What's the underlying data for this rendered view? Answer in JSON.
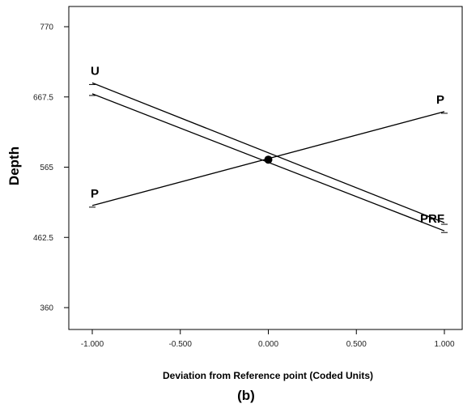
{
  "chart_data": {
    "type": "line",
    "title": "",
    "xlabel": "Deviation from Reference point (Coded Units)",
    "ylabel": "Depth",
    "caption": "(b)",
    "xlim": [
      -1.1,
      1.1
    ],
    "ylim": [
      325,
      810
    ],
    "x_ticks": [
      "-1.000",
      "-0.500",
      "0.000",
      "0.500",
      "1.000"
    ],
    "x_tick_values": [
      -1,
      -0.5,
      0,
      0.5,
      1
    ],
    "y_ticks": [
      "770",
      "667.5",
      "565",
      "462.5",
      "360"
    ],
    "y_tick_values": [
      770,
      667.5,
      565,
      462.5,
      360
    ],
    "reference_point": {
      "x": 0,
      "y": 576
    },
    "series": [
      {
        "name": "U",
        "x": [
          -1,
          1
        ],
        "y": [
          688,
          484
        ],
        "left_label": "U",
        "right_label": ""
      },
      {
        "name": "P",
        "x": [
          -1,
          1
        ],
        "y": [
          509,
          646
        ],
        "left_label": "P",
        "right_label": "P"
      },
      {
        "name": "PRF",
        "x": [
          -1,
          1
        ],
        "y": [
          672,
          472
        ],
        "left_label": "",
        "right_label": "PRF"
      }
    ],
    "grid": false,
    "legend": "none",
    "line_color": "#000000"
  }
}
